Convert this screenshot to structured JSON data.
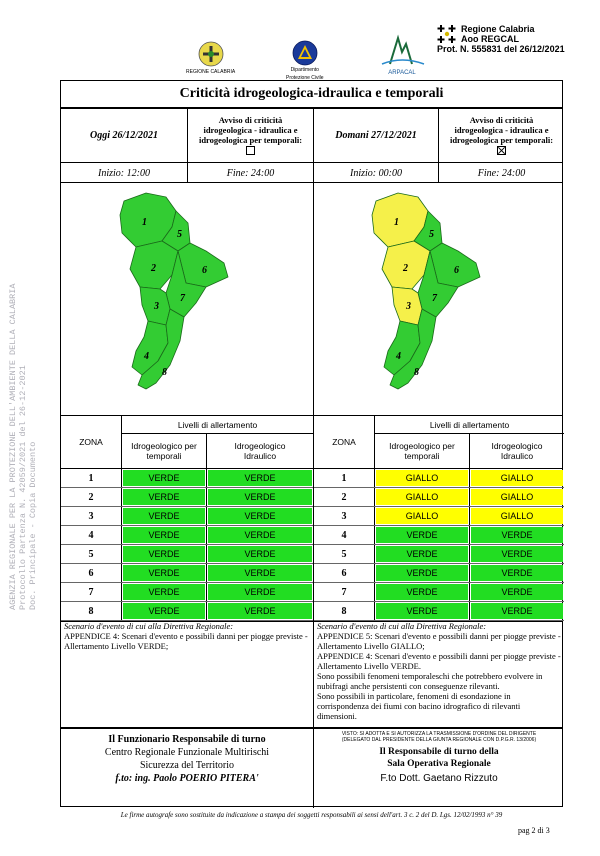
{
  "header": {
    "regione_caption": "REGIONE CALABRIA",
    "pc_caption_1": "Dipartimento",
    "pc_caption_2": "Protezione Civile",
    "arpacal_caption": "ARPACAL",
    "protocol_line1": "Regione Calabria",
    "protocol_line2": "Aoo REGCAL",
    "protocol_line3": "Prot. N. 555831 del 26/12/2021"
  },
  "watermark": {
    "line1": "AGENZIA REGIONALE PER LA PROTEZIONE DELL'AMBIENTE DELLA CALABRIA",
    "line2": "Protocollo Partenza N. 42059/2021 del 26-12-2021",
    "line3": "Doc. Principale - Copia Documento"
  },
  "title": "Criticità idrogeologica-idraulica e temporali",
  "today": {
    "date": "Oggi 26/12/2021",
    "avviso_line1": "Avviso di criticità",
    "avviso_line2": "idrogeologica - idraulica e",
    "avviso_line3": "idrogeologica per temporali:",
    "checked": false,
    "start": "Inizio: 12:00",
    "end": "Fine: 24:00",
    "zones": [
      "VERDE",
      "VERDE",
      "VERDE",
      "VERDE",
      "VERDE",
      "VERDE",
      "VERDE",
      "VERDE"
    ],
    "zones_idraulico": [
      "VERDE",
      "VERDE",
      "VERDE",
      "VERDE",
      "VERDE",
      "VERDE",
      "VERDE",
      "VERDE"
    ],
    "scenario_intro": "Scenario d'evento di cui alla Direttiva Regionale:",
    "scenario_text": "APPENDICE 4: Scenari d'evento e possibili danni per piogge previste - Allertamento Livello VERDE;"
  },
  "tomorrow": {
    "date": "Domani 27/12/2021",
    "avviso_line1": "Avviso di criticità",
    "avviso_line2": "idrogeologica - idraulica e",
    "avviso_line3": "idrogeologica per temporali:",
    "checked": true,
    "start": "Inizio: 00:00",
    "end": "Fine: 24:00",
    "zones": [
      "GIALLO",
      "GIALLO",
      "GIALLO",
      "VERDE",
      "VERDE",
      "VERDE",
      "VERDE",
      "VERDE"
    ],
    "zones_idraulico": [
      "GIALLO",
      "GIALLO",
      "GIALLO",
      "VERDE",
      "VERDE",
      "VERDE",
      "VERDE",
      "VERDE"
    ],
    "scenario_intro": "Scenario d'evento di cui alla Direttiva Regionale:",
    "scenario_text_1": "APPENDICE 5: Scenari d'evento e possibili danni per piogge previste - Allertamento Livello GIALLO;",
    "scenario_text_2": "APPENDICE 4: Scenari d'evento e possibili danni per piogge previste - Allertamento Livello VERDE.",
    "scenario_text_3": "Sono possibili fenomeni temporaleschi che potrebbero evolvere in nubifragi anche persistenti con conseguenze rilevanti.",
    "scenario_text_4": "Sono possibili in particolare, fenomeni di esondazione in corrispondenza dei fiumi con bacino idrografico di rilevanti dimensioni."
  },
  "levels": {
    "zone_header": "ZONA",
    "group_header": "Livelli di allertamento",
    "col1_line1": "Idrogeologico per",
    "col1_line2": "temporali",
    "col2_line1": "Idrogeologico",
    "col2_line2": "Idraulico",
    "zone_numbers": [
      "1",
      "2",
      "3",
      "4",
      "5",
      "6",
      "7",
      "8"
    ]
  },
  "colors": {
    "verde": "#22dd22",
    "giallo": "#ffff00",
    "map_green": "#33cc33",
    "map_yellow": "#f5f04a"
  },
  "signatures": {
    "left_line1": "Il Funzionario Responsabile di turno",
    "left_line2": "Centro Regionale Funzionale Multirischi",
    "left_line3": "Sicurezza del Territorio",
    "left_line4": "f.to: ing. Paolo POERIO PITERA'",
    "right_note_1": "VISTO: SI ADOTTA E SI AUTORIZZA LA TRASMISSIONE D'ORDINE DEL DIRIGENTE",
    "right_note_2": "(DELEGATO DAL PRESIDENTE DELLA GIUNTA REGIONALE CON D.P.G.R. 13/2006)",
    "right_line1": "Il Responsabile di turno della",
    "right_line2": "Sala Operativa Regionale",
    "right_name": "F.to Dott. Gaetano Rizzuto"
  },
  "footnote": "Le firme autografe sono sostituite da indicazione a stampa dei soggetti responsabili ai sensi dell'art. 3 c. 2 del D. Lgs. 12/02/1993 n° 39",
  "page": "pag 2 di 3"
}
